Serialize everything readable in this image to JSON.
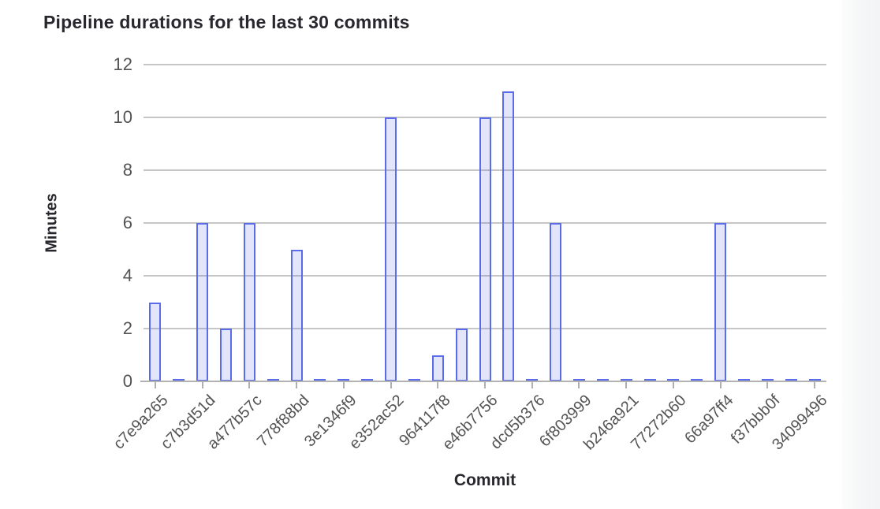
{
  "page": {
    "title": "Pipeline durations for the last 30 commits"
  },
  "chart_data": {
    "type": "bar",
    "title": "Pipeline durations for the last 30 commits",
    "xlabel": "Commit",
    "ylabel": "Minutes",
    "ylim": [
      0,
      12
    ],
    "y_ticks": [
      0,
      2,
      4,
      6,
      8,
      10,
      12
    ],
    "grid": true,
    "legend_position": "none",
    "label_interval": 2,
    "categories": [
      "c7e9a265",
      "",
      "c7b3d51d",
      "",
      "a477b57c",
      "",
      "778f88bd",
      "",
      "3e1346f9",
      "",
      "e352ac52",
      "",
      "964117f8",
      "",
      "e46b7756",
      "",
      "dcd5b376",
      "",
      "6f803999",
      "",
      "b246a921",
      "",
      "77272b60",
      "",
      "66a97ff4",
      "",
      "f37bbb0f",
      "",
      "34099496"
    ],
    "values": [
      3,
      0,
      6,
      2,
      6,
      0,
      5,
      0,
      0,
      0,
      10,
      0,
      1,
      2,
      10,
      11,
      0,
      6,
      0,
      0,
      0,
      0,
      0,
      0,
      6,
      0,
      0,
      0,
      0
    ],
    "x_tick_labels": [
      "c7e9a265",
      "c7b3d51d",
      "a477b57c",
      "778f88bd",
      "3e1346f9",
      "e352ac52",
      "964117f8",
      "e46b7756",
      "dcd5b376",
      "6f803999",
      "b246a921",
      "77272b60",
      "66a97ff4",
      "f37bbb0f",
      "34099496"
    ],
    "colors": {
      "bar_fill": "#dde1fb",
      "bar_border": "#5b6ceb",
      "gridline": "#c6c6c6",
      "axis_line": "#b2b2b2",
      "tick": "#b0b0b0",
      "title_text": "#28272d",
      "axis_label_text": "#545454"
    }
  }
}
